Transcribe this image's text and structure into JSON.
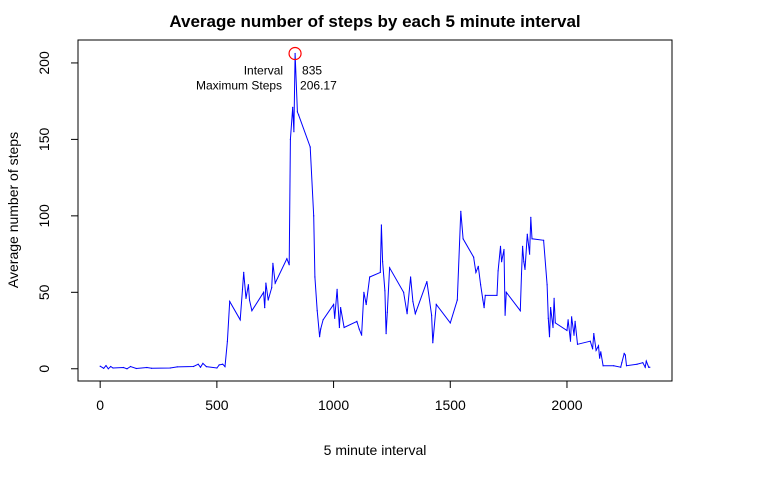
{
  "chart_data": {
    "type": "line",
    "title": "Average number of steps by each 5 minute interval",
    "xlabel": "5 minute interval",
    "ylabel": "Average number of steps",
    "xlim": [
      -95,
      2450
    ],
    "ylim": [
      -8,
      215
    ],
    "xticks": [
      0,
      500,
      1000,
      1500,
      2000
    ],
    "yticks": [
      0,
      50,
      100,
      150,
      200
    ],
    "x_tick_labels": [
      "0",
      "500",
      "1000",
      "1500",
      "2000"
    ],
    "y_tick_labels": [
      "0",
      "50",
      "100",
      "150",
      "200"
    ],
    "grid": false,
    "series": [
      {
        "color": "#0000ff",
        "points": [
          [
            0,
            1.7
          ],
          [
            15,
            0.3
          ],
          [
            25,
            2.1
          ],
          [
            35,
            0
          ],
          [
            45,
            1.5
          ],
          [
            55,
            0.5
          ],
          [
            100,
            0.8
          ],
          [
            115,
            0
          ],
          [
            130,
            1.5
          ],
          [
            155,
            0.2
          ],
          [
            200,
            0.8
          ],
          [
            220,
            0.3
          ],
          [
            300,
            0.5
          ],
          [
            330,
            1.2
          ],
          [
            400,
            1.5
          ],
          [
            420,
            3
          ],
          [
            430,
            1
          ],
          [
            440,
            3.5
          ],
          [
            455,
            1.4
          ],
          [
            500,
            0.5
          ],
          [
            510,
            2.5
          ],
          [
            525,
            3
          ],
          [
            535,
            1.4
          ],
          [
            545,
            18
          ],
          [
            555,
            44
          ],
          [
            600,
            32
          ],
          [
            610,
            52
          ],
          [
            615,
            63
          ],
          [
            625,
            46
          ],
          [
            635,
            55
          ],
          [
            640,
            45
          ],
          [
            650,
            38
          ],
          [
            700,
            50
          ],
          [
            705,
            40
          ],
          [
            710,
            56
          ],
          [
            720,
            45
          ],
          [
            735,
            53
          ],
          [
            740,
            69
          ],
          [
            750,
            56
          ],
          [
            800,
            72
          ],
          [
            810,
            68
          ],
          [
            815,
            150
          ],
          [
            825,
            171
          ],
          [
            830,
            155
          ],
          [
            835,
            206.17
          ],
          [
            845,
            168
          ],
          [
            850,
            166
          ],
          [
            900,
            145
          ],
          [
            915,
            100
          ],
          [
            920,
            60
          ],
          [
            930,
            38
          ],
          [
            940,
            21
          ],
          [
            945,
            26
          ],
          [
            955,
            32
          ],
          [
            1000,
            42
          ],
          [
            1005,
            33
          ],
          [
            1015,
            52
          ],
          [
            1025,
            27
          ],
          [
            1030,
            40
          ],
          [
            1045,
            27
          ],
          [
            1100,
            31
          ],
          [
            1110,
            26
          ],
          [
            1120,
            22
          ],
          [
            1130,
            50
          ],
          [
            1140,
            42
          ],
          [
            1155,
            60
          ],
          [
            1200,
            63
          ],
          [
            1205,
            94
          ],
          [
            1210,
            70
          ],
          [
            1220,
            51
          ],
          [
            1225,
            23
          ],
          [
            1230,
            37
          ],
          [
            1240,
            66
          ],
          [
            1300,
            50
          ],
          [
            1315,
            36
          ],
          [
            1330,
            60
          ],
          [
            1340,
            44
          ],
          [
            1350,
            36
          ],
          [
            1355,
            38
          ],
          [
            1400,
            57
          ],
          [
            1420,
            35
          ],
          [
            1425,
            17
          ],
          [
            1440,
            42
          ],
          [
            1500,
            30
          ],
          [
            1530,
            45
          ],
          [
            1545,
            103
          ],
          [
            1555,
            85
          ],
          [
            1600,
            73
          ],
          [
            1610,
            63
          ],
          [
            1620,
            67
          ],
          [
            1630,
            55
          ],
          [
            1640,
            45
          ],
          [
            1645,
            40
          ],
          [
            1650,
            48
          ],
          [
            1700,
            48
          ],
          [
            1705,
            64
          ],
          [
            1715,
            80
          ],
          [
            1720,
            70
          ],
          [
            1730,
            78
          ],
          [
            1735,
            35
          ],
          [
            1740,
            50
          ],
          [
            1800,
            38
          ],
          [
            1805,
            62
          ],
          [
            1810,
            80
          ],
          [
            1815,
            70
          ],
          [
            1820,
            65
          ],
          [
            1830,
            88
          ],
          [
            1840,
            75
          ],
          [
            1845,
            99
          ],
          [
            1850,
            85
          ],
          [
            1900,
            84
          ],
          [
            1915,
            55
          ],
          [
            1920,
            33
          ],
          [
            1925,
            21
          ],
          [
            1930,
            40
          ],
          [
            1940,
            27
          ],
          [
            1945,
            46
          ],
          [
            1950,
            30
          ],
          [
            2000,
            25
          ],
          [
            2005,
            32
          ],
          [
            2015,
            18
          ],
          [
            2020,
            34
          ],
          [
            2030,
            22
          ],
          [
            2035,
            31
          ],
          [
            2045,
            16
          ],
          [
            2100,
            18
          ],
          [
            2110,
            13
          ],
          [
            2115,
            23
          ],
          [
            2125,
            12
          ],
          [
            2135,
            15
          ],
          [
            2140,
            7
          ],
          [
            2145,
            11
          ],
          [
            2155,
            2
          ],
          [
            2200,
            2
          ],
          [
            2230,
            1
          ],
          [
            2235,
            4
          ],
          [
            2245,
            10
          ],
          [
            2250,
            9
          ],
          [
            2255,
            2
          ],
          [
            2300,
            3
          ],
          [
            2325,
            4
          ],
          [
            2335,
            1
          ],
          [
            2340,
            5
          ],
          [
            2350,
            1
          ],
          [
            2355,
            1
          ]
        ]
      }
    ],
    "max_marker": {
      "x": 835,
      "y": 206.17,
      "marker_color": "#ff0000",
      "interval_label": "Interval",
      "interval_value": "835",
      "steps_label": "Maximum Steps",
      "steps_value": "206.17"
    }
  }
}
